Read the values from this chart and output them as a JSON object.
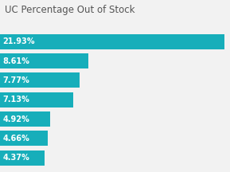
{
  "title": "UC Percentage Out of Stock",
  "values": [
    21.93,
    8.61,
    7.77,
    7.13,
    4.92,
    4.66,
    4.37
  ],
  "labels": [
    "21.93%",
    "8.61%",
    "7.77%",
    "7.13%",
    "4.92%",
    "4.66%",
    "4.37%"
  ],
  "bar_color": "#17AEBA",
  "background_color": "#f2f2f2",
  "text_color": "#ffffff",
  "title_color": "#555555",
  "xlim_max": 22.5,
  "title_fontsize": 8.5,
  "label_fontsize": 7.0,
  "bar_height": 0.78
}
